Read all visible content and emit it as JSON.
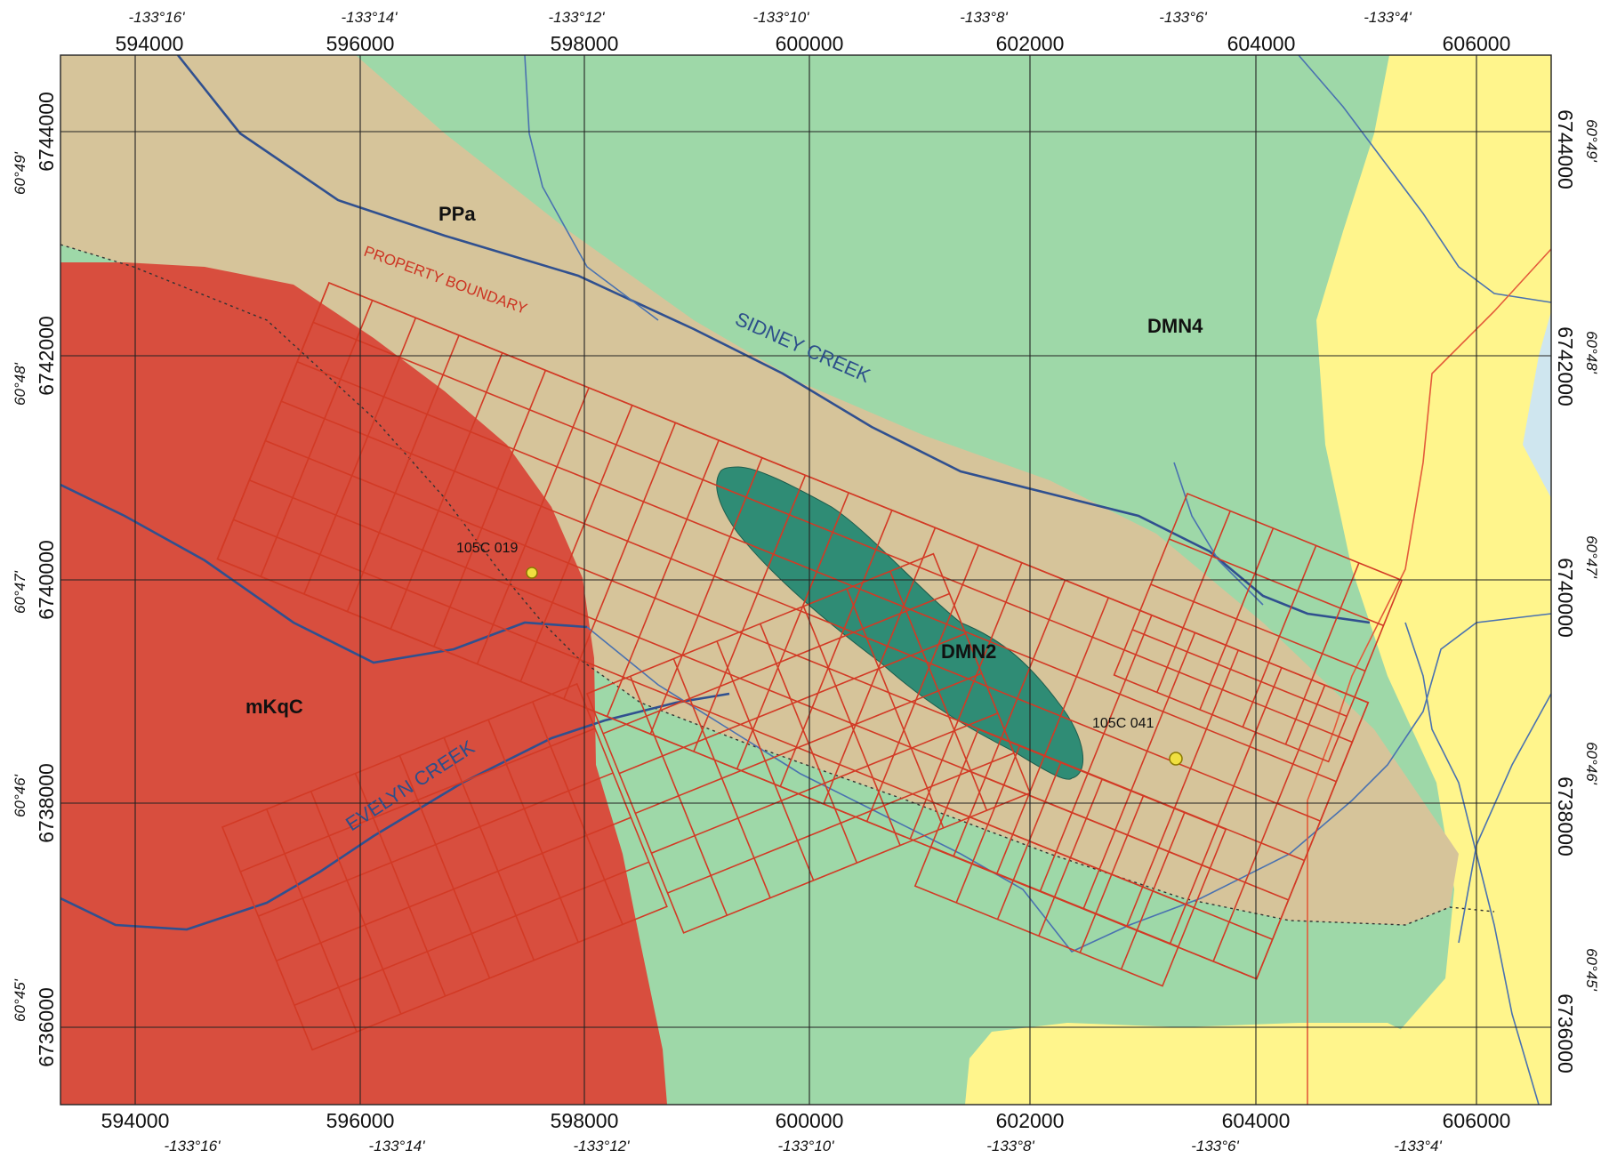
{
  "map": {
    "easting_ticks": [
      "594000",
      "596000",
      "598000",
      "600000",
      "602000",
      "604000",
      "606000"
    ],
    "northing_ticks": [
      "6744000",
      "6742000",
      "6740000",
      "6738000",
      "6736000"
    ],
    "longitude_ticks": [
      "-133°16'",
      "-133°14'",
      "-133°12'",
      "-133°10'",
      "-133°8'",
      "-133°6'",
      "-133°4'"
    ],
    "latitude_ticks": [
      "60°49'",
      "60°48'",
      "60°47'",
      "60°46'",
      "60°45'"
    ],
    "units": {
      "ppa": "PPa",
      "dmn4": "DMN4",
      "dmn2": "DMN2",
      "mkqc": "mKqC"
    },
    "features": {
      "property_boundary": "PROPERTY BOUNDARY",
      "sidney_creek": "SIDNEY CREEK",
      "evelyn_creek": "EVELYN CREEK"
    },
    "sites": [
      {
        "label": "105C 019"
      },
      {
        "label": "105C 041"
      }
    ],
    "colors": {
      "ppa": "#d6c49a",
      "dmn4": "#9ed8a8",
      "dmn2": "#2f8c75",
      "mkqc": "#d84e3e",
      "yellow_unit": "#fff58c",
      "claims": "#d23a25",
      "streams": "#4a72b0"
    }
  }
}
